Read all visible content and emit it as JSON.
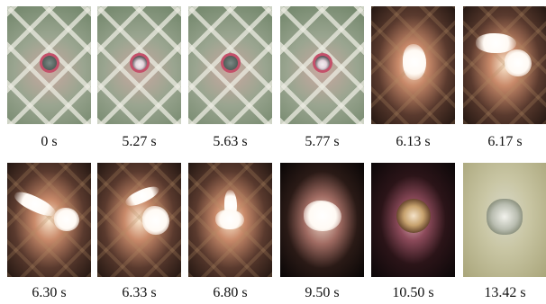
{
  "frames": [
    {
      "label": "0 s"
    },
    {
      "label": "5.27 s"
    },
    {
      "label": "5.63 s"
    },
    {
      "label": "5.77 s"
    },
    {
      "label": "6.13 s"
    },
    {
      "label": "6.17 s"
    },
    {
      "label": "6.30 s"
    },
    {
      "label": "6.33 s"
    },
    {
      "label": "6.80 s"
    },
    {
      "label": "9.50 s"
    },
    {
      "label": "10.50 s"
    },
    {
      "label": "13.42 s"
    }
  ]
}
